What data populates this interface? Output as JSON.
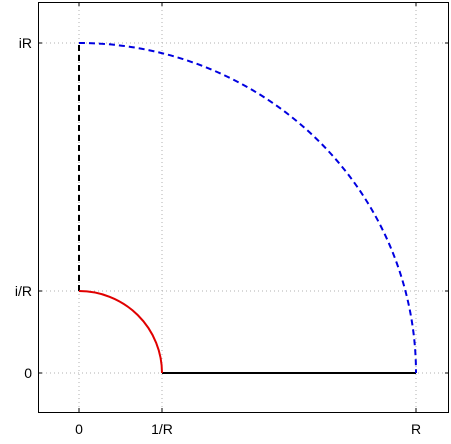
{
  "chart_data": {
    "type": "contour-diagram",
    "title": "",
    "xlabel": "",
    "ylabel": "",
    "x_ticks": [
      "0",
      "1/R",
      "R"
    ],
    "y_ticks": [
      "iR",
      "i/R",
      "0"
    ],
    "grid": true,
    "colors": {
      "inner_arc": "#e00000",
      "outer_arc": "#0000e0",
      "segments": "#000000"
    },
    "segments": [
      {
        "name": "real-axis-segment",
        "style": "solid",
        "color": "#000000"
      },
      {
        "name": "imaginary-axis-segment",
        "style": "dashed",
        "color": "#000000"
      },
      {
        "name": "inner-arc",
        "style": "solid",
        "color": "#e00000"
      },
      {
        "name": "outer-arc",
        "style": "dashed",
        "color": "#0000e0"
      }
    ]
  }
}
